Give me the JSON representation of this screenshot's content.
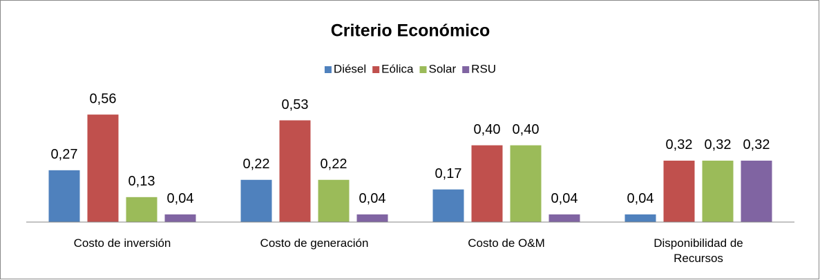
{
  "chart_data": {
    "type": "bar",
    "title": "Criterio Económico",
    "categories": [
      "Costo de inversión",
      "Costo de generación",
      "Costo de O&M",
      "Disponibilidad de Recursos"
    ],
    "series": [
      {
        "name": "Diésel",
        "color": "#4f81bd",
        "values": [
          0.27,
          0.22,
          0.17,
          0.04
        ],
        "value_labels": [
          "0,27",
          "0,22",
          "0,17",
          "0,04"
        ]
      },
      {
        "name": "Eólica",
        "color": "#c0504d",
        "values": [
          0.56,
          0.53,
          0.4,
          0.32
        ],
        "value_labels": [
          "0,56",
          "0,53",
          "0,40",
          "0,32"
        ]
      },
      {
        "name": "Solar",
        "color": "#9bbb59",
        "values": [
          0.13,
          0.22,
          0.4,
          0.32
        ],
        "value_labels": [
          "0,13",
          "0,22",
          "0,40",
          "0,32"
        ]
      },
      {
        "name": "RSU",
        "color": "#8064a2",
        "values": [
          0.04,
          0.04,
          0.04,
          0.32
        ],
        "value_labels": [
          "0,04",
          "0,04",
          "0,04",
          "0,32"
        ]
      }
    ],
    "ylim": [
      0,
      0.6
    ],
    "legend": "top"
  }
}
